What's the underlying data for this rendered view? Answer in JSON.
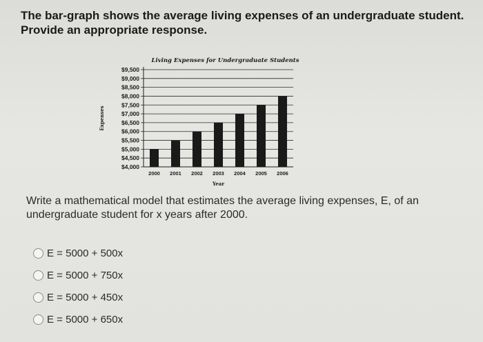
{
  "question": {
    "line1": "The bar-graph shows the average living expenses of an undergraduate student.",
    "line2": "Provide an appropriate response."
  },
  "prompt": {
    "line1": "Write a mathematical model that estimates the average living expenses, E, of an",
    "line2": "undergraduate student for x years after 2000."
  },
  "options": [
    {
      "label": "E = 5000 + 500x"
    },
    {
      "label": "E = 5000 + 750x"
    },
    {
      "label": "E = 5000 + 450x"
    },
    {
      "label": "E = 5000 + 650x"
    }
  ],
  "chart_data": {
    "type": "bar",
    "title": "Living Expenses for Undergraduate Students",
    "xlabel": "Year",
    "ylabel": "Expenses",
    "categories": [
      "2000",
      "2001",
      "2002",
      "2003",
      "2004",
      "2005",
      "2006"
    ],
    "values": [
      5000,
      5500,
      6000,
      6500,
      7000,
      7500,
      8000
    ],
    "ylim": [
      4000,
      9500
    ],
    "yticks": [
      "$4,000",
      "$4,500",
      "$5,000",
      "$5,500",
      "$6,000",
      "$6,500",
      "$7,000",
      "$7,500",
      "$8,000",
      "$8,500",
      "$9,000",
      "$9,500"
    ],
    "grid": true,
    "bar_color": "#1a1a1a"
  }
}
